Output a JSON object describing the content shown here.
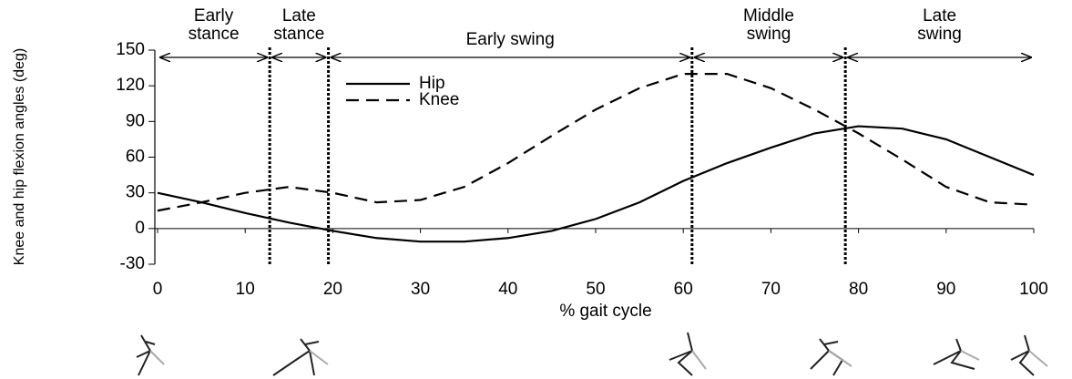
{
  "chart_data": {
    "type": "line",
    "xlabel": "% gait cycle",
    "ylabel": "Knee and hip flexion angles (deg)",
    "x": [
      0,
      5,
      10,
      15,
      20,
      25,
      30,
      35,
      40,
      45,
      50,
      55,
      60,
      65,
      70,
      75,
      80,
      85,
      90,
      95,
      100
    ],
    "series": [
      {
        "name": "Hip",
        "color": "#000000",
        "style": "solid",
        "values": [
          30,
          22,
          13,
          5,
          -2,
          -8,
          -11,
          -11,
          -8,
          -2,
          8,
          22,
          40,
          55,
          68,
          80,
          86,
          84,
          75,
          60,
          45
        ]
      },
      {
        "name": "Knee",
        "color": "#000000",
        "style": "dashed",
        "values": [
          15,
          22,
          30,
          35,
          30,
          22,
          24,
          35,
          55,
          78,
          100,
          118,
          130,
          130,
          118,
          100,
          80,
          58,
          35,
          22,
          20
        ]
      }
    ],
    "xlim": [
      0,
      100
    ],
    "xticks": [
      0,
      10,
      20,
      30,
      40,
      50,
      60,
      70,
      80,
      90,
      100
    ],
    "ylim": [
      -30,
      150
    ],
    "yticks": [
      -30,
      0,
      30,
      60,
      90,
      120,
      150
    ],
    "phases": [
      {
        "label": [
          "Early",
          "stance"
        ],
        "start": 0,
        "end": 12.8
      },
      {
        "label": [
          "Late",
          "stance"
        ],
        "start": 12.8,
        "end": 19.5
      },
      {
        "label": [
          "Early swing"
        ],
        "start": 19.5,
        "end": 61
      },
      {
        "label": [
          "Middle",
          "swing"
        ],
        "start": 61,
        "end": 78.5
      },
      {
        "label": [
          "Late",
          "swing"
        ],
        "start": 78.5,
        "end": 100
      }
    ]
  }
}
